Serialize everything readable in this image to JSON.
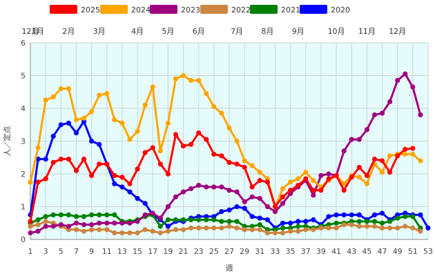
{
  "chart_data": {
    "type": "line",
    "title": "",
    "xlabel": "週",
    "ylabel": "人／定点",
    "xlim": [
      1,
      53
    ],
    "ylim": [
      0,
      6
    ],
    "x_ticks": [
      1,
      3,
      5,
      7,
      9,
      11,
      13,
      15,
      17,
      19,
      21,
      23,
      25,
      27,
      29,
      31,
      33,
      35,
      37,
      39,
      41,
      43,
      45,
      47,
      49,
      51,
      53
    ],
    "y_ticks": [
      0,
      1,
      2,
      3,
      4,
      5,
      6
    ],
    "grid": true,
    "legend_position": "top",
    "plot_background": "#e6fbfb",
    "month_labels": [
      {
        "label": "12月",
        "week": 1
      },
      {
        "label": "1月",
        "week": 2
      },
      {
        "label": "2月",
        "week": 6
      },
      {
        "label": "3月",
        "week": 10
      },
      {
        "label": "4月",
        "week": 15
      },
      {
        "label": "5月",
        "week": 19
      },
      {
        "label": "6月",
        "week": 23
      },
      {
        "label": "7月",
        "week": 28
      },
      {
        "label": "8月",
        "week": 32
      },
      {
        "label": "9月",
        "week": 36
      },
      {
        "label": "10月",
        "week": 41
      },
      {
        "label": "11月",
        "week": 45
      },
      {
        "label": "12月",
        "week": 49
      }
    ],
    "series": [
      {
        "name": "2025",
        "color": "#ff0000",
        "x_start": 1,
        "values": [
          0.55,
          1.75,
          1.85,
          2.35,
          2.45,
          2.45,
          2.1,
          2.45,
          1.95,
          2.3,
          2.3,
          1.95,
          1.9,
          1.7,
          2.15,
          2.65,
          2.8,
          2.3,
          2.0,
          3.2,
          2.85,
          2.9,
          3.25,
          3.05,
          2.6,
          2.55,
          2.35,
          2.3,
          2.2,
          1.6,
          1.8,
          1.75,
          1.0,
          1.3,
          1.5,
          1.65,
          1.85,
          1.5,
          1.5,
          1.85,
          1.95,
          1.5,
          1.9,
          2.2,
          1.95,
          2.45,
          2.4,
          2.05,
          2.55,
          2.75,
          2.78
        ]
      },
      {
        "name": "2024",
        "color": "#ffa500",
        "x_start": 1,
        "values": [
          1.75,
          2.8,
          4.25,
          4.35,
          4.6,
          4.6,
          3.65,
          3.7,
          3.9,
          4.4,
          4.45,
          3.65,
          3.55,
          3.05,
          3.3,
          4.1,
          4.65,
          2.7,
          3.55,
          4.9,
          5.0,
          4.85,
          4.85,
          4.45,
          4.05,
          3.85,
          3.4,
          3.0,
          2.4,
          2.25,
          2.05,
          1.85,
          1.0,
          1.55,
          1.75,
          1.85,
          2.05,
          1.8,
          1.6,
          1.8,
          1.95,
          1.7,
          1.95,
          1.9,
          1.7,
          2.3,
          2.05,
          2.55,
          2.6,
          2.6,
          2.6,
          2.4
        ]
      },
      {
        "name": "2023",
        "color": "#a0007f",
        "x_start": 1,
        "values": [
          0.2,
          0.25,
          0.4,
          0.4,
          0.45,
          0.4,
          0.5,
          0.45,
          0.45,
          0.5,
          0.5,
          0.5,
          0.5,
          0.5,
          0.55,
          0.75,
          0.8,
          0.65,
          1.0,
          1.3,
          1.45,
          1.55,
          1.65,
          1.6,
          1.6,
          1.6,
          1.5,
          1.45,
          1.15,
          1.3,
          1.25,
          1.0,
          0.85,
          1.1,
          1.4,
          1.6,
          1.8,
          1.35,
          1.95,
          2.0,
          1.95,
          2.7,
          3.05,
          3.05,
          3.35,
          3.8,
          3.85,
          4.2,
          4.85,
          5.05,
          4.65,
          3.8
        ]
      },
      {
        "name": "2022",
        "color": "#cd853f",
        "x_start": 1,
        "values": [
          0.4,
          0.45,
          0.55,
          0.5,
          0.4,
          0.3,
          0.3,
          0.25,
          0.3,
          0.3,
          0.3,
          0.2,
          0.2,
          0.2,
          0.2,
          0.3,
          0.25,
          0.2,
          0.25,
          0.3,
          0.3,
          0.35,
          0.35,
          0.35,
          0.35,
          0.35,
          0.4,
          0.35,
          0.3,
          0.3,
          0.3,
          0.2,
          0.2,
          0.2,
          0.25,
          0.25,
          0.3,
          0.3,
          0.35,
          0.35,
          0.35,
          0.45,
          0.45,
          0.4,
          0.4,
          0.4,
          0.35,
          0.35,
          0.35,
          0.4,
          0.35,
          0.25
        ]
      },
      {
        "name": "2021",
        "color": "#008000",
        "x_start": 1,
        "values": [
          0.5,
          0.6,
          0.7,
          0.75,
          0.75,
          0.75,
          0.7,
          0.7,
          0.75,
          0.75,
          0.75,
          0.75,
          0.55,
          0.55,
          0.6,
          0.7,
          0.75,
          0.4,
          0.6,
          0.6,
          0.6,
          0.6,
          0.6,
          0.6,
          0.6,
          0.55,
          0.55,
          0.55,
          0.4,
          0.4,
          0.45,
          0.3,
          0.3,
          0.35,
          0.35,
          0.4,
          0.4,
          0.35,
          0.4,
          0.45,
          0.5,
          0.5,
          0.55,
          0.55,
          0.55,
          0.55,
          0.5,
          0.55,
          0.65,
          0.7,
          0.7,
          0.35
        ]
      },
      {
        "name": "2020",
        "color": "#0000ff",
        "x_start": 1,
        "values": [
          0.75,
          2.45,
          2.45,
          3.15,
          3.5,
          3.55,
          3.25,
          3.6,
          3.0,
          2.9,
          2.3,
          1.7,
          1.6,
          1.45,
          1.25,
          1.1,
          0.75,
          0.6,
          0.4,
          0.55,
          0.55,
          0.65,
          0.7,
          0.7,
          0.7,
          0.85,
          0.9,
          1.0,
          0.95,
          0.7,
          0.65,
          0.6,
          0.35,
          0.5,
          0.5,
          0.55,
          0.55,
          0.6,
          0.45,
          0.7,
          0.75,
          0.75,
          0.75,
          0.75,
          0.6,
          0.75,
          0.8,
          0.6,
          0.75,
          0.8,
          0.75,
          0.75,
          0.35
        ]
      }
    ]
  }
}
